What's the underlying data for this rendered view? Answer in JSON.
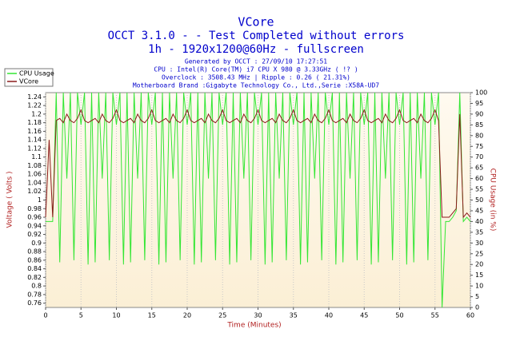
{
  "chart_data": {
    "type": "line",
    "title": "VCore",
    "subtitle": [
      "OCCT 3.1.0 -  - Test Completed without errors",
      "1h - 1920x1200@60Hz - fullscreen"
    ],
    "info": [
      "Generated by OCCT : 27/09/10 17:27:51",
      "CPU : Intel(R) Core(TM) i7 CPU X 980 @ 3.33GHz (   !? )",
      "Overclock : 3508.43 MHz | Ripple : 0.26 ( 21.31%)",
      "Motherboard Brand :Gigabyte Technology Co., Ltd.,Serie :X58A-UD7"
    ],
    "xlabel": "Time (Minutes)",
    "ylabel": "Voltage ( Volts )",
    "y2label": "CPU Usage (in %)",
    "xlim": [
      0,
      60
    ],
    "xticks": [
      0,
      5,
      10,
      15,
      20,
      25,
      30,
      35,
      40,
      45,
      50,
      55,
      60
    ],
    "ylim": [
      0.75,
      1.25
    ],
    "yticks": [
      0.76,
      0.78,
      0.8,
      0.82,
      0.84,
      0.86,
      0.88,
      0.9,
      0.92,
      0.94,
      0.96,
      0.98,
      1,
      1.02,
      1.04,
      1.06,
      1.08,
      1.1,
      1.12,
      1.14,
      1.16,
      1.18,
      1.2,
      1.22,
      1.24
    ],
    "y2lim": [
      0,
      100
    ],
    "y2ticks": [
      0,
      5,
      10,
      15,
      20,
      25,
      30,
      35,
      40,
      45,
      50,
      55,
      60,
      65,
      70,
      75,
      80,
      85,
      90,
      95,
      100
    ],
    "grid": true,
    "legend": "upper left",
    "x": [
      0,
      0.5,
      1,
      1.5,
      2,
      2.5,
      3,
      3.5,
      4,
      4.5,
      5,
      5.5,
      6,
      6.5,
      7,
      7.5,
      8,
      8.5,
      9,
      9.5,
      10,
      10.5,
      11,
      11.5,
      12,
      12.5,
      13,
      13.5,
      14,
      14.5,
      15,
      15.5,
      16,
      16.5,
      17,
      17.5,
      18,
      18.5,
      19,
      19.5,
      20,
      20.5,
      21,
      21.5,
      22,
      22.5,
      23,
      23.5,
      24,
      24.5,
      25,
      25.5,
      26,
      26.5,
      27,
      27.5,
      28,
      28.5,
      29,
      29.5,
      30,
      30.5,
      31,
      31.5,
      32,
      32.5,
      33,
      33.5,
      34,
      34.5,
      35,
      35.5,
      36,
      36.5,
      37,
      37.5,
      38,
      38.5,
      39,
      39.5,
      40,
      40.5,
      41,
      41.5,
      42,
      42.5,
      43,
      43.5,
      44,
      44.5,
      45,
      45.5,
      46,
      46.5,
      47,
      47.5,
      48,
      48.5,
      49,
      49.5,
      50,
      50.5,
      51,
      51.5,
      52,
      52.5,
      53,
      53.5,
      54,
      54.5,
      55,
      55.5,
      56,
      56.5,
      57,
      57.5,
      58,
      58.5,
      59,
      59.5,
      60
    ],
    "series": [
      {
        "name": "CPU Usage",
        "color": "#33e633",
        "axis": "y2",
        "values": [
          40,
          40,
          40,
          100,
          21,
          100,
          60,
          100,
          22,
          100,
          85,
          100,
          20,
          100,
          21,
          100,
          60,
          100,
          22,
          100,
          85,
          100,
          20,
          100,
          21,
          100,
          60,
          100,
          22,
          100,
          85,
          100,
          20,
          100,
          21,
          100,
          60,
          100,
          22,
          100,
          85,
          100,
          20,
          100,
          21,
          100,
          60,
          100,
          22,
          100,
          85,
          100,
          20,
          100,
          21,
          100,
          60,
          100,
          22,
          100,
          85,
          100,
          20,
          100,
          21,
          100,
          60,
          100,
          22,
          100,
          85,
          100,
          20,
          100,
          21,
          100,
          60,
          100,
          22,
          100,
          85,
          100,
          20,
          100,
          21,
          100,
          60,
          100,
          22,
          100,
          85,
          100,
          20,
          100,
          21,
          100,
          60,
          100,
          22,
          100,
          85,
          100,
          20,
          100,
          21,
          100,
          60,
          100,
          22,
          100,
          85,
          100,
          0,
          40,
          40,
          42,
          45,
          100,
          40,
          42,
          40
        ]
      },
      {
        "name": "VCore",
        "color": "#8b1a1a",
        "values": [
          0.96,
          1.14,
          0.96,
          1.185,
          1.19,
          1.18,
          1.2,
          1.185,
          1.18,
          1.19,
          1.21,
          1.185,
          1.18,
          1.185,
          1.19,
          1.18,
          1.2,
          1.185,
          1.18,
          1.19,
          1.21,
          1.185,
          1.18,
          1.185,
          1.19,
          1.18,
          1.2,
          1.185,
          1.18,
          1.19,
          1.21,
          1.185,
          1.18,
          1.185,
          1.19,
          1.18,
          1.2,
          1.185,
          1.18,
          1.19,
          1.21,
          1.185,
          1.18,
          1.185,
          1.19,
          1.18,
          1.2,
          1.185,
          1.18,
          1.19,
          1.21,
          1.185,
          1.18,
          1.185,
          1.19,
          1.18,
          1.2,
          1.185,
          1.18,
          1.19,
          1.21,
          1.185,
          1.18,
          1.185,
          1.19,
          1.18,
          1.2,
          1.185,
          1.18,
          1.19,
          1.21,
          1.185,
          1.18,
          1.185,
          1.19,
          1.18,
          1.2,
          1.185,
          1.18,
          1.19,
          1.21,
          1.185,
          1.18,
          1.185,
          1.19,
          1.18,
          1.2,
          1.185,
          1.18,
          1.19,
          1.21,
          1.185,
          1.18,
          1.185,
          1.19,
          1.18,
          1.2,
          1.185,
          1.18,
          1.19,
          1.21,
          1.185,
          1.18,
          1.185,
          1.19,
          1.18,
          1.2,
          1.185,
          1.18,
          1.19,
          1.21,
          1.185,
          0.96,
          0.96,
          0.96,
          0.97,
          0.98,
          1.2,
          0.96,
          0.97,
          0.96
        ]
      }
    ]
  }
}
